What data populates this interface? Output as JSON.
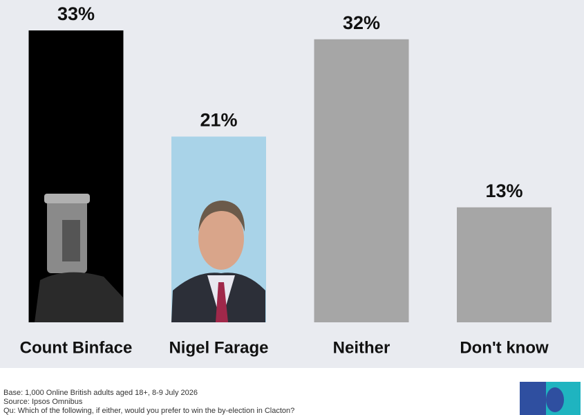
{
  "chart_data": {
    "type": "bar",
    "categories": [
      "Count Binface",
      "Nigel Farage",
      "Neither",
      "Don't know"
    ],
    "values": [
      33,
      21,
      32,
      13
    ],
    "value_labels": [
      "33%",
      "21%",
      "32%",
      "13%"
    ],
    "colors": [
      "#000000",
      "#a9d3e8",
      "#a6a6a6",
      "#a6a6a6"
    ],
    "footnotes": [
      "Base: 1,000 Online British adults aged 18+, 8-9 July 2026",
      "Source: Ipsos Omnibus",
      "Qu: Which of the following, if either, would you prefer to win the by-election in Clacton?"
    ]
  }
}
